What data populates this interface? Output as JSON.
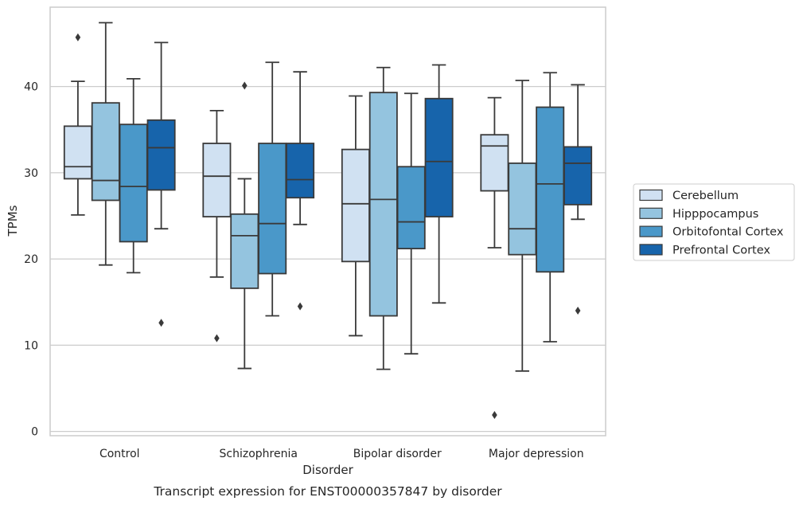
{
  "colors": {
    "grid": "#cccccc",
    "axes_frame": "#cccccc",
    "box_edge": "#3a3a3a",
    "background": "#ffffff"
  },
  "chart_data": {
    "type": "boxplot",
    "title": "",
    "caption": "Transcript expression for ENST00000357847 by disorder",
    "xlabel": "Disorder",
    "ylabel": "TPMs",
    "ylim": [
      -0.5,
      49.2
    ],
    "yticks": [
      0,
      10,
      20,
      30,
      40
    ],
    "grid": "horizontal",
    "legend_position": "right-center",
    "categories": [
      "Control",
      "Schizophrenia",
      "Bipolar disorder",
      "Major depression"
    ],
    "series": [
      {
        "name": "Cerebellum",
        "color": "#d0e1f2",
        "boxes": [
          {
            "whislo": 25.1,
            "q1": 29.3,
            "med": 30.7,
            "q3": 35.4,
            "whishi": 40.6,
            "fliers": [
              45.7
            ]
          },
          {
            "whislo": 17.9,
            "q1": 24.9,
            "med": 29.6,
            "q3": 33.4,
            "whishi": 37.2,
            "fliers": [
              10.8
            ]
          },
          {
            "whislo": 11.1,
            "q1": 19.7,
            "med": 26.4,
            "q3": 32.7,
            "whishi": 38.9,
            "fliers": []
          },
          {
            "whislo": 21.3,
            "q1": 27.9,
            "med": 33.1,
            "q3": 34.4,
            "whishi": 38.7,
            "fliers": [
              1.9
            ]
          }
        ]
      },
      {
        "name": "Hipppocampus",
        "color": "#94c4df",
        "boxes": [
          {
            "whislo": 19.3,
            "q1": 26.8,
            "med": 29.1,
            "q3": 38.1,
            "whishi": 47.4,
            "fliers": []
          },
          {
            "whislo": 7.3,
            "q1": 16.6,
            "med": 22.7,
            "q3": 25.2,
            "whishi": 29.3,
            "fliers": [
              40.1
            ]
          },
          {
            "whislo": 7.2,
            "q1": 13.4,
            "med": 26.9,
            "q3": 39.3,
            "whishi": 42.2,
            "fliers": []
          },
          {
            "whislo": 7.0,
            "q1": 20.5,
            "med": 23.5,
            "q3": 31.1,
            "whishi": 40.7,
            "fliers": []
          }
        ]
      },
      {
        "name": "Orbitofontal Cortex",
        "color": "#4a98c9",
        "boxes": [
          {
            "whislo": 18.4,
            "q1": 22.0,
            "med": 28.4,
            "q3": 35.6,
            "whishi": 40.9,
            "fliers": []
          },
          {
            "whislo": 13.4,
            "q1": 18.3,
            "med": 24.1,
            "q3": 33.4,
            "whishi": 42.8,
            "fliers": []
          },
          {
            "whislo": 9.0,
            "q1": 21.2,
            "med": 24.3,
            "q3": 30.7,
            "whishi": 39.2,
            "fliers": []
          },
          {
            "whislo": 10.4,
            "q1": 18.5,
            "med": 28.7,
            "q3": 37.6,
            "whishi": 41.6,
            "fliers": []
          }
        ]
      },
      {
        "name": "Prefrontal Cortex",
        "color": "#1764ab",
        "boxes": [
          {
            "whislo": 23.5,
            "q1": 28.0,
            "med": 32.9,
            "q3": 36.1,
            "whishi": 45.1,
            "fliers": [
              12.6
            ]
          },
          {
            "whislo": 24.0,
            "q1": 27.1,
            "med": 29.2,
            "q3": 33.4,
            "whishi": 41.7,
            "fliers": [
              14.5
            ]
          },
          {
            "whislo": 14.9,
            "q1": 24.9,
            "med": 31.3,
            "q3": 38.6,
            "whishi": 42.5,
            "fliers": []
          },
          {
            "whislo": 24.6,
            "q1": 26.3,
            "med": 31.1,
            "q3": 33.0,
            "whishi": 40.2,
            "fliers": [
              14.0
            ]
          }
        ]
      }
    ]
  }
}
